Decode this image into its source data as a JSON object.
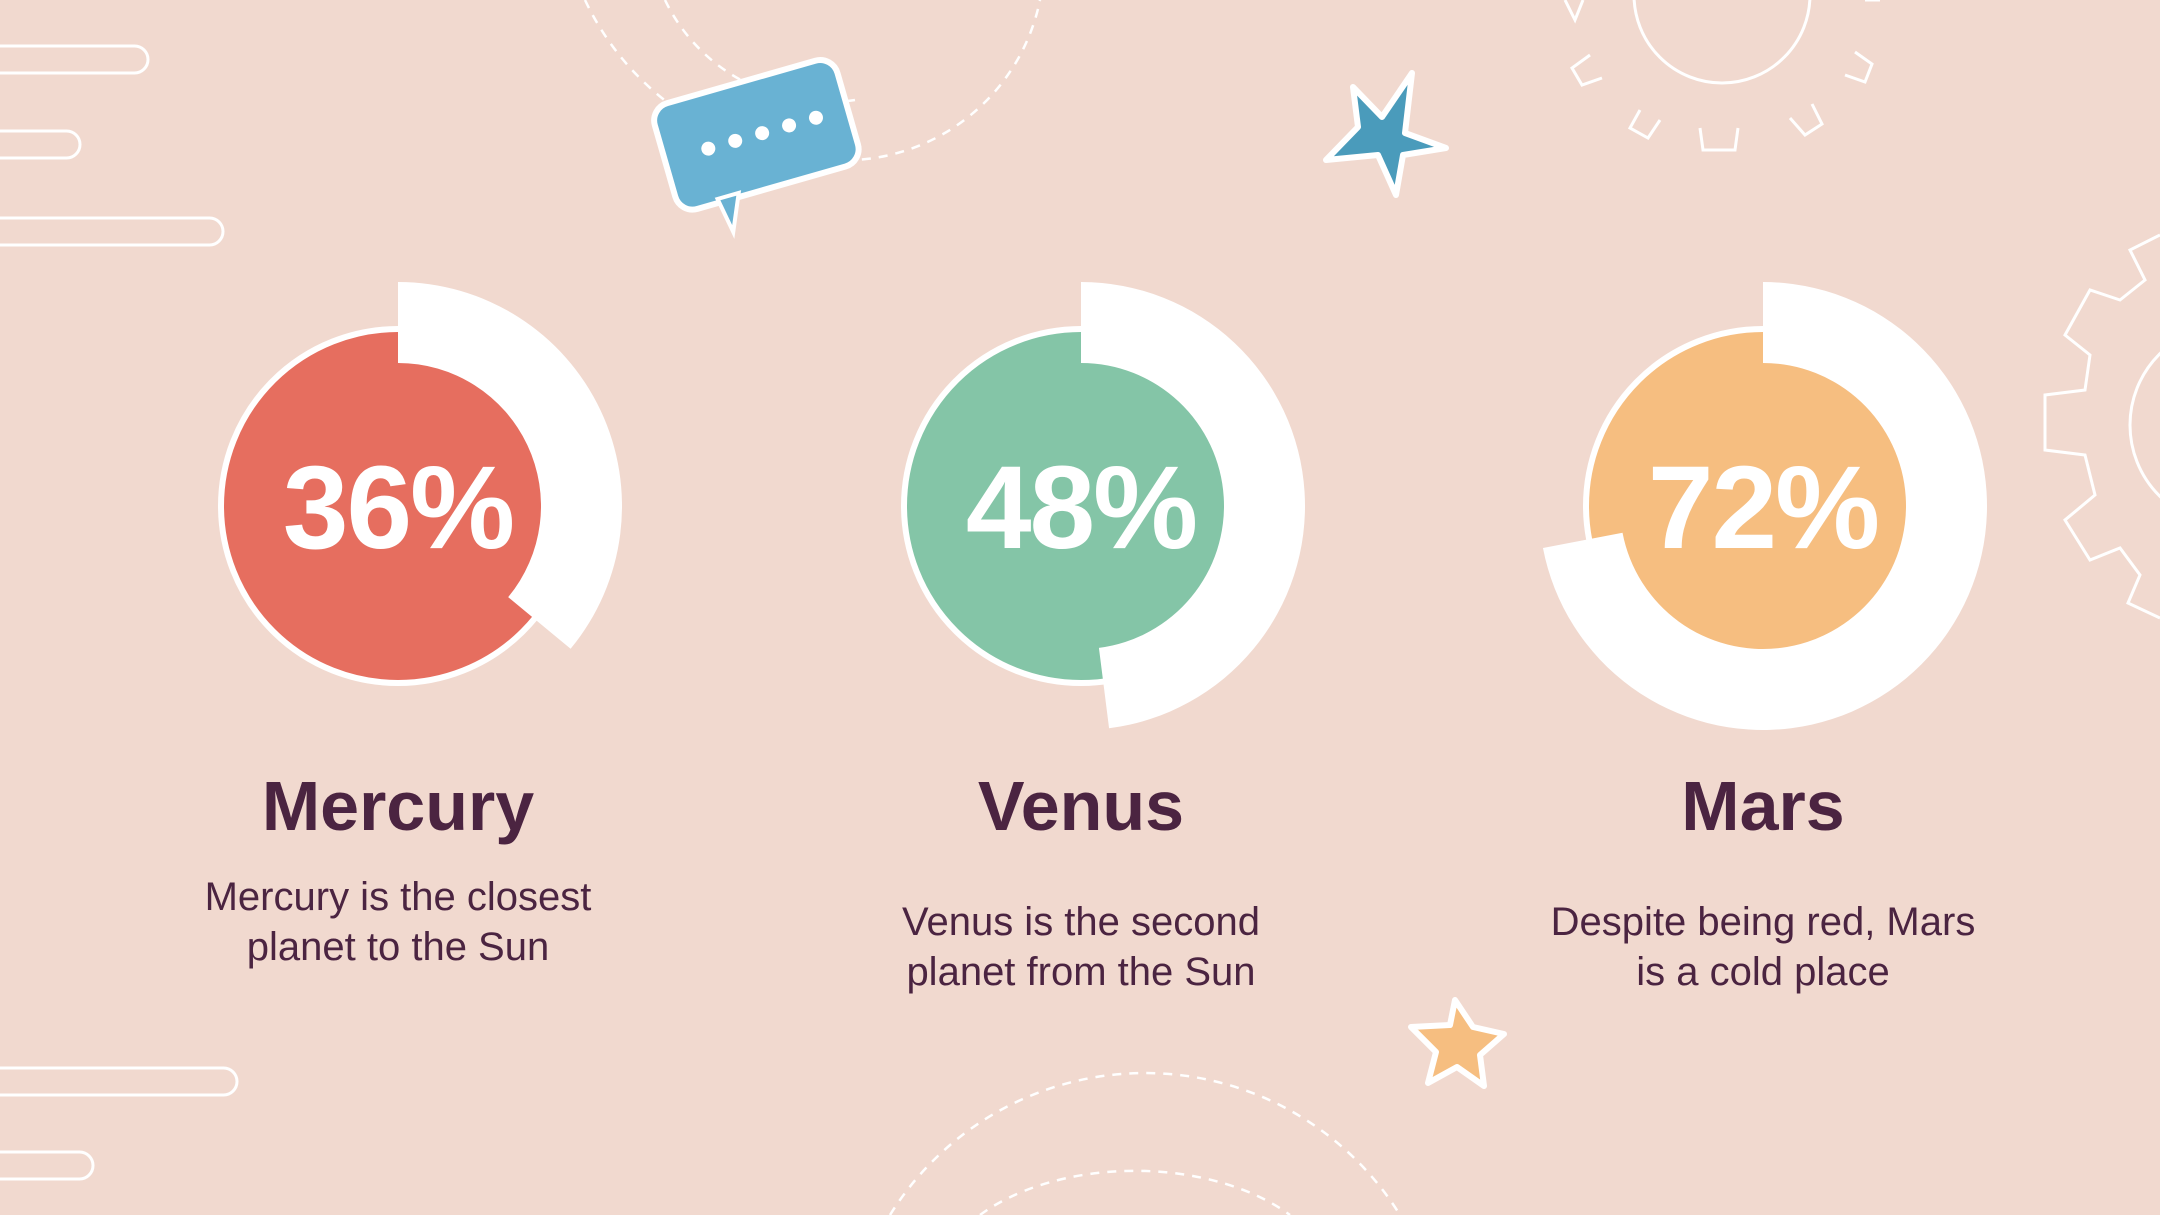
{
  "colors": {
    "background": "#f1d9cf",
    "text": "#4b2441",
    "ring": "#ffffff",
    "bubble": "#69b2d3",
    "star_blue": "#4a9bbb",
    "star_orange": "#f6be80"
  },
  "decorations": [
    "speech-bubble-icon",
    "star-icon",
    "gear-icon",
    "dashed-arcs",
    "rounded-lines"
  ],
  "chart_data": {
    "type": "pie",
    "title": "",
    "items": [
      {
        "name": "Mercury",
        "value": 36,
        "label": "36%",
        "color": "#e66e5f",
        "description": "Mercury is the closest planet to the Sun"
      },
      {
        "name": "Venus",
        "value": 48,
        "label": "48%",
        "color": "#84c5a7",
        "description": "Venus is the second planet from the Sun"
      },
      {
        "name": "Mars",
        "value": 72,
        "label": "72%",
        "color": "#f6be80",
        "description": "Despite being red, Mars is a cold place"
      }
    ]
  }
}
